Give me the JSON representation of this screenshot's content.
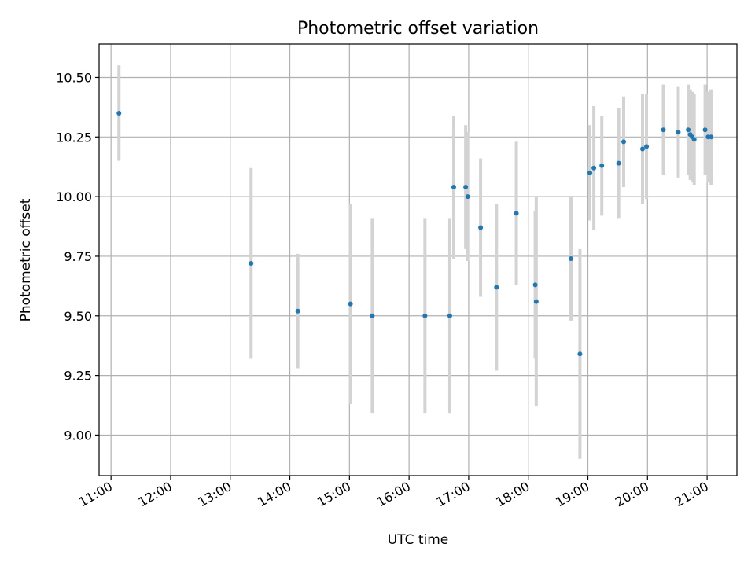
{
  "chart_data": {
    "type": "scatter",
    "title": "Photometric offset variation",
    "xlabel": "UTC time",
    "ylabel": "Photometric offset",
    "x_ticks": [
      "11:00",
      "12:00",
      "13:00",
      "14:00",
      "15:00",
      "16:00",
      "17:00",
      "18:00",
      "19:00",
      "20:00",
      "21:00"
    ],
    "y_ticks": [
      9.0,
      9.25,
      9.5,
      9.75,
      10.0,
      10.25,
      10.5
    ],
    "y_tick_labels": [
      "9.00",
      "9.25",
      "9.50",
      "9.75",
      "10.00",
      "10.25",
      "10.50"
    ],
    "xlim": [
      "10:48",
      "21:30"
    ],
    "ylim": [
      8.83,
      10.64
    ],
    "grid": true,
    "colors": {
      "point": "#1f77b4",
      "errorbar": "#d3d3d3"
    },
    "series": [
      {
        "points": [
          {
            "x": "11:08",
            "y": 10.35,
            "err": 0.2
          },
          {
            "x": "13:21",
            "y": 9.72,
            "err": 0.4
          },
          {
            "x": "14:08",
            "y": 9.52,
            "err": 0.24
          },
          {
            "x": "15:01",
            "y": 9.55,
            "err": 0.42
          },
          {
            "x": "15:23",
            "y": 9.5,
            "err": 0.41
          },
          {
            "x": "16:16",
            "y": 9.5,
            "err": 0.41
          },
          {
            "x": "16:41",
            "y": 9.5,
            "err": 0.41
          },
          {
            "x": "16:45",
            "y": 10.04,
            "err": 0.3
          },
          {
            "x": "16:57",
            "y": 10.04,
            "err": 0.26
          },
          {
            "x": "16:59",
            "y": 10.0,
            "err": 0.27
          },
          {
            "x": "17:12",
            "y": 9.87,
            "err": 0.29
          },
          {
            "x": "17:28",
            "y": 9.62,
            "err": 0.35
          },
          {
            "x": "17:48",
            "y": 9.93,
            "err": 0.3
          },
          {
            "x": "18:07",
            "y": 9.63,
            "err": 0.31
          },
          {
            "x": "18:08",
            "y": 9.56,
            "err": 0.44
          },
          {
            "x": "18:43",
            "y": 9.74,
            "err": 0.26
          },
          {
            "x": "18:52",
            "y": 9.34,
            "err": 0.44
          },
          {
            "x": "19:02",
            "y": 10.1,
            "err": 0.2
          },
          {
            "x": "19:06",
            "y": 10.12,
            "err": 0.26
          },
          {
            "x": "19:14",
            "y": 10.13,
            "err": 0.21
          },
          {
            "x": "19:31",
            "y": 10.14,
            "err": 0.23
          },
          {
            "x": "19:36",
            "y": 10.23,
            "err": 0.19
          },
          {
            "x": "19:55",
            "y": 10.2,
            "err": 0.23
          },
          {
            "x": "19:59",
            "y": 10.21,
            "err": 0.22
          },
          {
            "x": "20:16",
            "y": 10.28,
            "err": 0.19
          },
          {
            "x": "20:31",
            "y": 10.27,
            "err": 0.19
          },
          {
            "x": "20:41",
            "y": 10.28,
            "err": 0.19
          },
          {
            "x": "20:43",
            "y": 10.26,
            "err": 0.19
          },
          {
            "x": "20:45",
            "y": 10.25,
            "err": 0.19
          },
          {
            "x": "20:47",
            "y": 10.24,
            "err": 0.19
          },
          {
            "x": "20:58",
            "y": 10.28,
            "err": 0.19
          },
          {
            "x": "21:01",
            "y": 10.25,
            "err": 0.19
          },
          {
            "x": "21:04",
            "y": 10.25,
            "err": 0.2
          }
        ]
      }
    ]
  }
}
